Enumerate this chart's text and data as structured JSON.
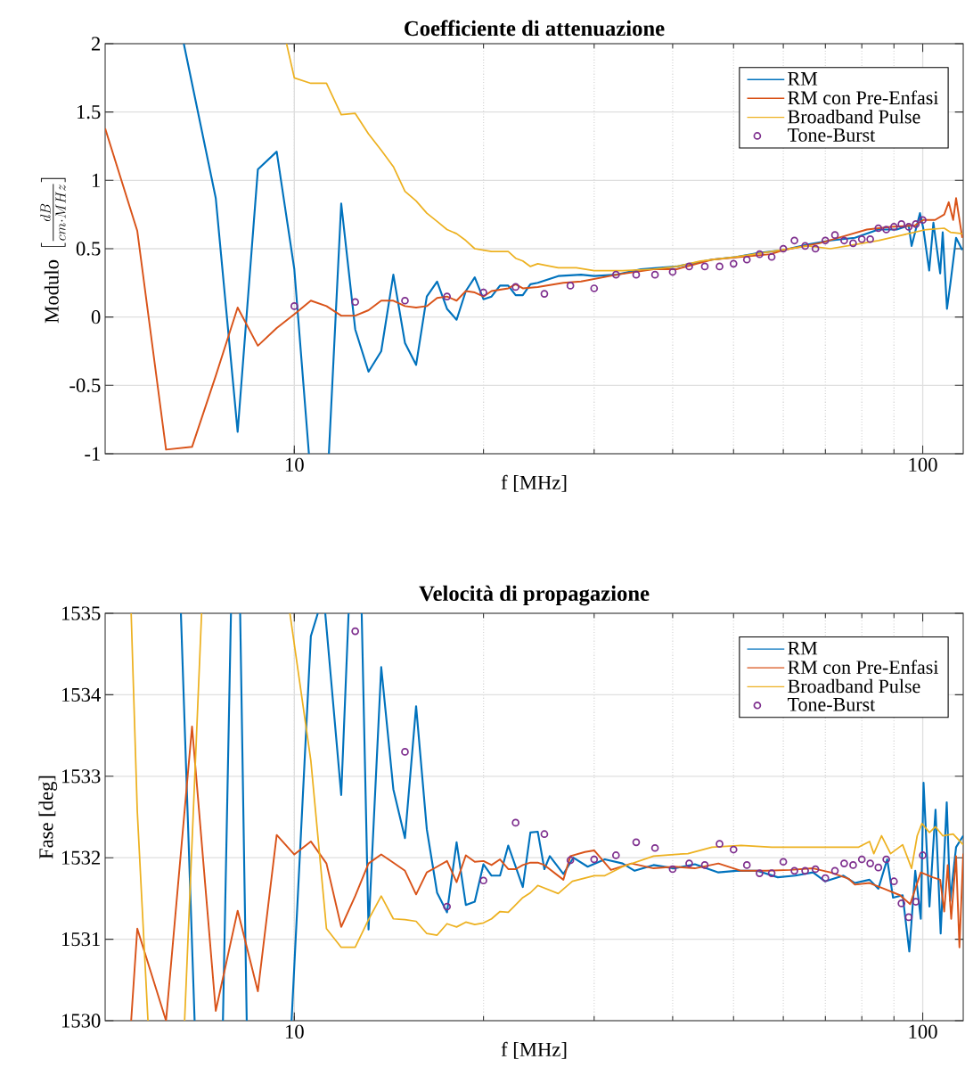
{
  "chart_data": [
    {
      "type": "line",
      "title": "Coefficiente di attenuazione",
      "xlabel": "f [MHz]",
      "ylabel": "\\text{Modulo }\\left[\\frac{dB}{cm\\cdot MHz}\\right]",
      "log": "x",
      "grid": true,
      "legend": "top right",
      "xlim": [
        5,
        116
      ],
      "ylim": [
        -1,
        2
      ],
      "xticks": [
        10,
        100
      ],
      "yticks": [
        -1,
        -0.5,
        0,
        0.5,
        1,
        1.5,
        2
      ],
      "series": [
        {
          "name": "RM",
          "color": "#0072bd",
          "x": [
            6.67,
            7.5,
            8.125,
            8.75,
            9.375,
            10,
            10.55,
            10.95,
            11.35,
            11.875,
            12.5,
            13.125,
            13.75,
            14.375,
            15,
            15.625,
            16.25,
            16.875,
            17.5,
            18.125,
            18.75,
            19.375,
            20,
            20.6,
            21.25,
            21.9,
            22.5,
            23.1,
            23.75,
            24.4,
            26.3,
            28.6,
            30,
            32.6,
            35.6,
            40.6,
            46.2,
            50.5,
            55,
            60,
            65.6,
            71.3,
            78,
            85,
            90.9,
            95,
            96,
            99,
            100.2,
            102.4,
            104,
            106.6,
            107.6,
            109.3,
            110.7,
            113,
            115.6
          ],
          "values": [
            2,
            0.87,
            -0.84,
            1.08,
            1.21,
            0.35,
            -1,
            null,
            -1,
            0.83,
            -0.09,
            -0.4,
            -0.25,
            0.31,
            -0.19,
            -0.35,
            0.15,
            0.26,
            0.06,
            -0.02,
            0.19,
            0.29,
            0.13,
            0.15,
            0.23,
            0.23,
            0.16,
            0.16,
            0.24,
            0.25,
            0.3,
            0.31,
            0.3,
            0.31,
            0.35,
            0.37,
            0.42,
            0.44,
            0.47,
            0.49,
            0.53,
            0.56,
            0.58,
            0.64,
            0.64,
            0.67,
            0.52,
            0.76,
            0.65,
            0.34,
            0.69,
            0.32,
            0.62,
            0.06,
            0.25,
            0.58,
            0.49
          ]
        },
        {
          "name": "RM con Pre-Enfasi",
          "color": "#d95319",
          "x": [
            5,
            5.625,
            6.25,
            6.875,
            7.5,
            8.125,
            8.75,
            9.375,
            10,
            10.625,
            11.25,
            11.875,
            12.5,
            13.125,
            13.75,
            14.375,
            15,
            15.625,
            16.25,
            16.875,
            17.5,
            18.125,
            18.75,
            19.375,
            20,
            20.6,
            21.9,
            22.5,
            23.1,
            24.4,
            26.8,
            28.6,
            32.6,
            37.3,
            40.6,
            46.2,
            57.3,
            60,
            68.5,
            74.8,
            81.5,
            88.9,
            97.2,
            100.2,
            104.6,
            108.2,
            110,
            111.8,
            113,
            115.6
          ],
          "values": [
            1.38,
            0.63,
            -0.97,
            -0.95,
            -0.43,
            0.07,
            -0.21,
            -0.08,
            0.02,
            0.12,
            0.08,
            0.01,
            0.01,
            0.05,
            0.12,
            0.12,
            0.08,
            0.07,
            0.08,
            0.14,
            0.15,
            0.12,
            0.19,
            0.18,
            0.15,
            0.19,
            0.21,
            0.24,
            0.21,
            0.22,
            0.25,
            0.26,
            0.31,
            0.35,
            0.35,
            0.42,
            0.46,
            0.49,
            0.54,
            0.59,
            0.64,
            0.66,
            0.67,
            0.71,
            0.71,
            0.75,
            0.84,
            0.71,
            0.87,
            0.58
          ]
        },
        {
          "name": "Broadband Pulse",
          "color": "#edb120",
          "x": [
            9.72,
            10,
            10.625,
            11.25,
            11.875,
            12.5,
            13.125,
            13.75,
            14.375,
            15,
            15.625,
            16.25,
            16.875,
            17.5,
            18.125,
            18.75,
            19.375,
            20,
            20.6,
            21.25,
            21.9,
            22.5,
            23.1,
            23.75,
            24.4,
            25,
            26.3,
            28.1,
            30,
            33.3,
            37.3,
            40.6,
            44.3,
            50.5,
            57.5,
            65.6,
            71.3,
            78,
            85,
            92.9,
            101.3,
            108.2,
            110.7,
            115.6
          ],
          "values": [
            2,
            1.75,
            1.71,
            1.71,
            1.48,
            1.49,
            1.34,
            1.22,
            1.1,
            0.92,
            0.85,
            0.76,
            0.7,
            0.64,
            0.61,
            0.56,
            0.5,
            0.49,
            0.48,
            0.48,
            0.48,
            0.43,
            0.41,
            0.37,
            0.39,
            0.38,
            0.36,
            0.36,
            0.34,
            0.34,
            0.35,
            0.37,
            0.41,
            0.44,
            0.48,
            0.52,
            0.5,
            0.53,
            0.56,
            0.6,
            0.64,
            0.65,
            0.62,
            0.61
          ]
        },
        {
          "name": "Tone-Burst",
          "color": "#7e2f8e",
          "type": "scatter",
          "marker": "circle",
          "x": [
            10,
            12.5,
            15,
            17.5,
            20,
            22.5,
            25,
            27.5,
            30,
            32.5,
            35,
            37.5,
            40,
            42.5,
            45,
            47.5,
            50,
            52.5,
            55,
            57.5,
            60,
            62.5,
            65,
            67.5,
            70,
            72.5,
            75,
            77.5,
            80,
            82.5,
            85,
            87.5,
            90,
            92.5,
            95,
            97.5,
            100
          ],
          "values": [
            0.08,
            0.11,
            0.12,
            0.15,
            0.18,
            0.22,
            0.17,
            0.23,
            0.21,
            0.31,
            0.31,
            0.31,
            0.33,
            0.37,
            0.37,
            0.37,
            0.39,
            0.42,
            0.46,
            0.44,
            0.5,
            0.56,
            0.52,
            0.5,
            0.56,
            0.6,
            0.56,
            0.54,
            0.57,
            0.57,
            0.65,
            0.64,
            0.66,
            0.68,
            0.66,
            0.68,
            0.71
          ]
        }
      ]
    },
    {
      "type": "line",
      "title": "Velocità di propagazione",
      "xlabel": "f [MHz]",
      "ylabel": "Fase [deg]",
      "log": "x",
      "grid": true,
      "legend": "top right",
      "xlim": [
        5,
        116
      ],
      "ylim": [
        1530,
        1535
      ],
      "xticks": [
        10,
        100
      ],
      "yticks": [
        1530,
        1531,
        1532,
        1533,
        1534,
        1535
      ],
      "series": [
        {
          "name": "RM",
          "color": "#0072bd",
          "x": [
            6.6,
            6.94,
            7.3,
            7.7,
            7.93,
            8.05,
            8.2,
            8.4,
            9.1,
            9.9,
            10.625,
            10.9,
            11.05,
            11.2,
            11.875,
            12.2,
            12.5,
            12.8,
            13.125,
            13.75,
            14.375,
            15,
            15.625,
            16.25,
            16.875,
            17.5,
            18.125,
            18.75,
            19.375,
            20,
            20.6,
            21.25,
            21.9,
            23.1,
            23.75,
            24.4,
            25,
            25.5,
            26.8,
            27.8,
            29.3,
            31.2,
            33.3,
            34.8,
            37.3,
            40.2,
            43.4,
            47.3,
            50.5,
            54.5,
            58.8,
            62.7,
            66.9,
            69.9,
            74.8,
            78,
            82.3,
            85,
            87.8,
            89.7,
            92.9,
            95.2,
            97.3,
            99.3,
            100.3,
            102.5,
            104.8,
            106.8,
            109.2,
            110.6,
            113,
            116
          ],
          "values": [
            1535,
            1530,
            null,
            1530,
            1535,
            null,
            1535,
            1530,
            null,
            1530,
            1534.72,
            1535,
            null,
            1535,
            1532.77,
            1535,
            null,
            1535,
            1531.12,
            1534.34,
            1532.84,
            1532.24,
            1533.86,
            1532.35,
            1531.57,
            1531.33,
            1532.19,
            1531.42,
            1531.46,
            1531.92,
            1531.78,
            1531.78,
            1532.15,
            1531.64,
            1532.31,
            1532.32,
            1531.86,
            1532.02,
            1531.8,
            1532,
            1531.89,
            1531.98,
            1531.93,
            1531.84,
            1531.91,
            1531.87,
            1531.92,
            1531.82,
            1531.84,
            1531.84,
            1531.76,
            1531.78,
            1531.82,
            1531.71,
            1531.78,
            1531.69,
            1531.73,
            1531.62,
            1531.98,
            1531.51,
            1531.54,
            1530.85,
            1531.84,
            1531.25,
            1532.92,
            1531.4,
            1532.59,
            1531.07,
            1532.68,
            1531.47,
            1532.13,
            1532.27
          ]
        },
        {
          "name": "RM con Pre-Enfasi",
          "color": "#d95319",
          "x": [
            5.5,
            5.625,
            6.25,
            6.875,
            7.5,
            8.125,
            8.75,
            9.375,
            10,
            10.625,
            11.25,
            11.875,
            12.5,
            13.125,
            13.75,
            14.375,
            15,
            15.625,
            16.25,
            16.875,
            17.5,
            18.125,
            18.75,
            19.375,
            20,
            20.6,
            21.25,
            21.9,
            22.5,
            23.1,
            23.75,
            24.4,
            25,
            26.8,
            27.5,
            29,
            30,
            31.9,
            34.4,
            37.3,
            40.2,
            43.4,
            47.3,
            51.4,
            56.3,
            61.5,
            66.9,
            71.3,
            76.3,
            78,
            82.3,
            86.7,
            92,
            95.5,
            99.3,
            103.7,
            106.6,
            108.2,
            109.6,
            111,
            113,
            114.4,
            116
          ],
          "values": [
            1530,
            1531.13,
            1530,
            1533.61,
            1530.12,
            1531.35,
            1530.36,
            1532.28,
            1532.04,
            1532.2,
            1531.93,
            1531.15,
            1531.53,
            1531.93,
            1532.04,
            1531.94,
            1531.84,
            1531.55,
            1531.82,
            1531.89,
            1531.96,
            1531.7,
            1532.03,
            1531.95,
            1531.96,
            1531.91,
            1531.98,
            1531.86,
            1531.86,
            1531.91,
            1531.94,
            1531.94,
            1531.91,
            1531.73,
            1532.02,
            1532.07,
            1532.09,
            1531.85,
            1531.93,
            1531.87,
            1531.89,
            1531.87,
            1531.93,
            1531.84,
            1531.84,
            1531.85,
            1531.87,
            1531.82,
            1531.74,
            1531.67,
            1531.69,
            1531.62,
            1531.54,
            1531.43,
            1531.82,
            1531.76,
            1531.73,
            1531.34,
            1531.91,
            1531.25,
            1532.02,
            1530.9,
            1532.05
          ]
        },
        {
          "name": "Broadband Pulse",
          "color": "#edb120",
          "x": [
            5.5,
            5.625,
            5.85,
            6.3,
            6.69,
            7.12,
            8.5,
            9.84,
            10.625,
            11.25,
            11.875,
            12.5,
            13.125,
            13.75,
            14.375,
            15,
            15.625,
            16.25,
            16.875,
            17.5,
            18.125,
            18.75,
            19.375,
            20,
            20.6,
            21.25,
            21.9,
            23.1,
            23.75,
            24.4,
            26.3,
            27.7,
            30,
            31.2,
            33.3,
            37.3,
            40.2,
            42.3,
            46.2,
            51.4,
            57.5,
            64.1,
            71.3,
            79.1,
            82.3,
            83.6,
            86,
            88.9,
            92.9,
            96,
            98,
            99.7,
            102.5,
            104.8,
            107.6,
            111.8,
            116
          ],
          "values": [
            1535,
            1532.57,
            1530,
            null,
            1530,
            1535,
            null,
            1535,
            1533.19,
            1531.13,
            1530.9,
            1530.9,
            1531.24,
            1531.53,
            1531.25,
            1531.24,
            1531.22,
            1531.07,
            1531.05,
            1531.19,
            1531.15,
            1531.21,
            1531.18,
            1531.2,
            1531.25,
            1531.34,
            1531.33,
            1531.51,
            1531.57,
            1531.66,
            1531.56,
            1531.71,
            1531.78,
            1531.78,
            1531.89,
            1532.02,
            1532.04,
            1532.05,
            1532.13,
            1532.15,
            1532.13,
            1532.13,
            1532.13,
            1532.13,
            1532.2,
            1532.05,
            1532.27,
            1532.05,
            1532.16,
            1531.87,
            1532.27,
            1532.42,
            1532.31,
            1532.38,
            1532.27,
            1532.29,
            1532.16
          ]
        },
        {
          "name": "Tone-Burst",
          "color": "#7e2f8e",
          "type": "scatter",
          "marker": "circle",
          "x": [
            12.5,
            15,
            17.5,
            20,
            22.5,
            25,
            27.5,
            30,
            32.5,
            35,
            37.5,
            40,
            42.5,
            45,
            47.5,
            50,
            52.5,
            55,
            57.5,
            60,
            62.5,
            65,
            67.5,
            70,
            72.5,
            75,
            77.5,
            80,
            82.5,
            85,
            87.5,
            90,
            92.5,
            95,
            97.5,
            100
          ],
          "values": [
            1534.78,
            1533.3,
            1531.4,
            1531.72,
            1532.43,
            1532.29,
            1531.97,
            1531.98,
            1532.03,
            1532.19,
            1532.12,
            1531.86,
            1531.93,
            1531.91,
            1532.17,
            1532.1,
            1531.91,
            1531.81,
            1531.81,
            1531.95,
            1531.84,
            1531.84,
            1531.86,
            1531.75,
            1531.84,
            1531.93,
            1531.91,
            1531.98,
            1531.93,
            1531.88,
            1531.98,
            1531.71,
            1531.44,
            1531.27,
            1531.46,
            1532.03
          ]
        }
      ]
    }
  ]
}
